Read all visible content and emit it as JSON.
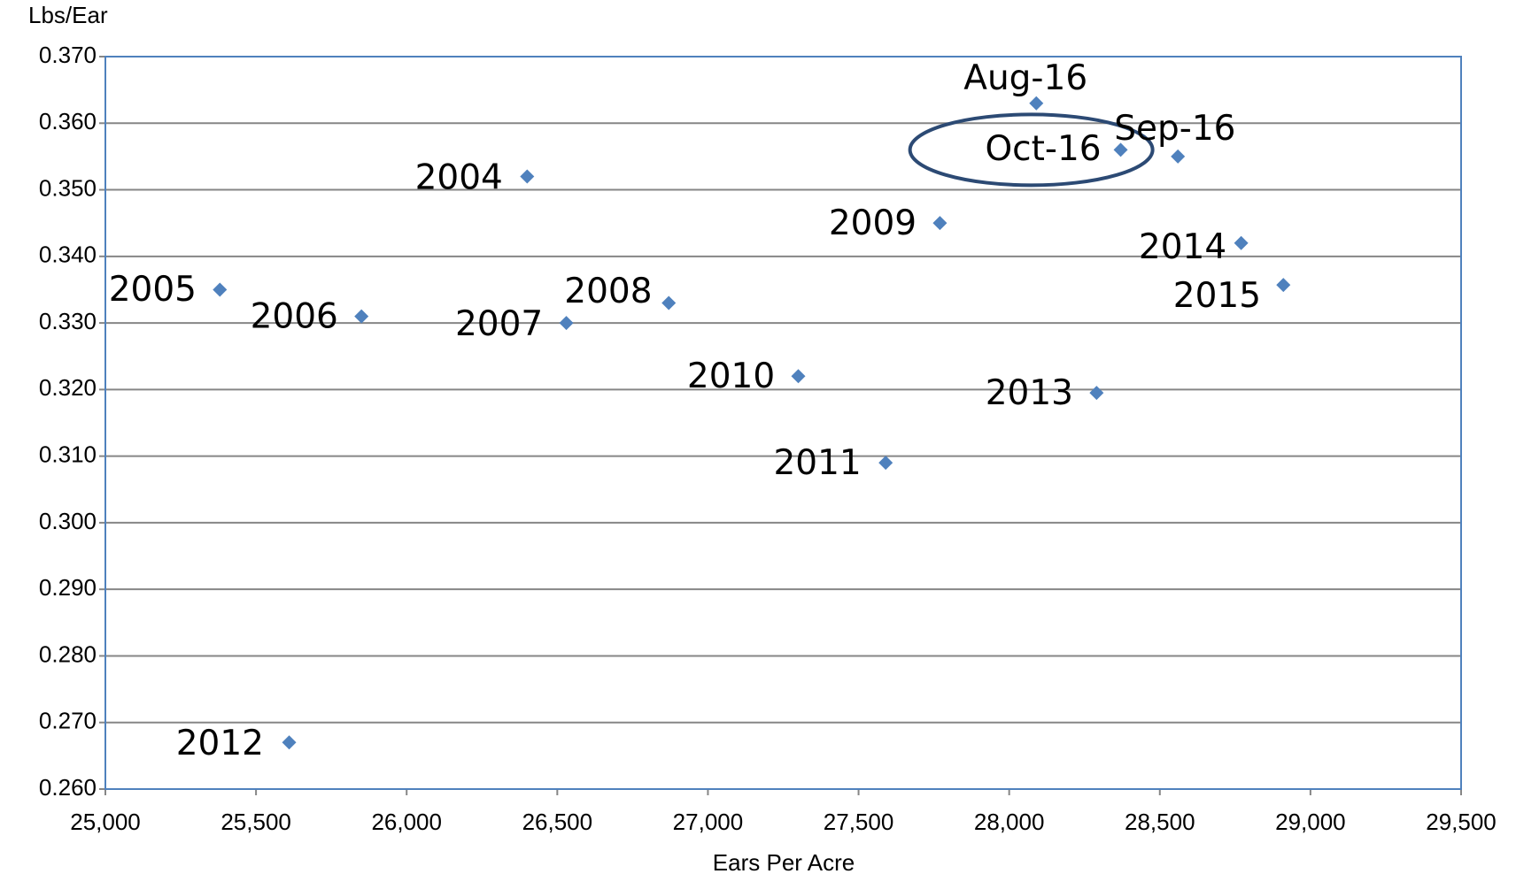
{
  "chart_data": {
    "type": "scatter",
    "y_label": "Lbs/Ear",
    "x_label": "Ears Per Acre",
    "labels": [
      "2005",
      "2006",
      "2012",
      "2004",
      "2007",
      "2008",
      "2010",
      "2011",
      "2009",
      "Aug-16",
      "Oct-16",
      "Sep-16",
      "2013",
      "2014",
      "2015"
    ],
    "x": [
      25380,
      25850,
      25610,
      26400,
      26530,
      26870,
      27300,
      27590,
      27770,
      28090,
      28370,
      28560,
      28290,
      28770,
      28910
    ],
    "values": [
      0.335,
      0.331,
      0.267,
      0.352,
      0.33,
      0.333,
      0.322,
      0.309,
      0.345,
      0.363,
      0.356,
      0.355,
      0.3195,
      0.342,
      0.3357
    ],
    "color": "#4f81bd",
    "xlim": [
      25000,
      29500
    ],
    "xticks": [
      {
        "value": 25000,
        "label": "25,000"
      },
      {
        "value": 25500,
        "label": "25,500"
      },
      {
        "value": 26000,
        "label": "26,000"
      },
      {
        "value": 26500,
        "label": "26,500"
      },
      {
        "value": 27000,
        "label": "27,000"
      },
      {
        "value": 27500,
        "label": "27,500"
      },
      {
        "value": 28000,
        "label": "28,000"
      },
      {
        "value": 28500,
        "label": "28,500"
      },
      {
        "value": 29000,
        "label": "29,000"
      },
      {
        "value": 29500,
        "label": "29,500"
      }
    ],
    "ylim": [
      0.26,
      0.37
    ],
    "yticks": [
      {
        "value": 0.26,
        "label": "0.260"
      },
      {
        "value": 0.27,
        "label": "0.270"
      },
      {
        "value": 0.28,
        "label": "0.280"
      },
      {
        "value": 0.29,
        "label": "0.290"
      },
      {
        "value": 0.3,
        "label": "0.300"
      },
      {
        "value": 0.31,
        "label": "0.310"
      },
      {
        "value": 0.32,
        "label": "0.320"
      },
      {
        "value": 0.33,
        "label": "0.330"
      },
      {
        "value": 0.34,
        "label": "0.340"
      },
      {
        "value": 0.35,
        "label": "0.350"
      },
      {
        "value": 0.36,
        "label": "0.360"
      },
      {
        "value": 0.37,
        "label": "0.370"
      }
    ],
    "grid": true
  }
}
